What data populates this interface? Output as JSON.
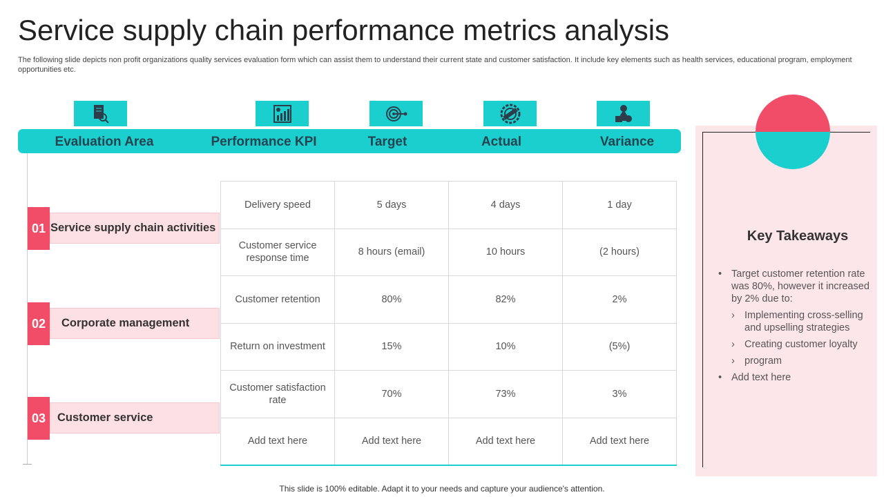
{
  "title": "Service supply chain performance metrics analysis",
  "subtitle": "The following slide depicts non profit organizations quality services evaluation form which can assist them to understand their current state and customer satisfaction. It include key elements such as health services, educational program, employment opportunities etc.",
  "colors": {
    "teal": "#1ccfcf",
    "red": "#f24d68",
    "pink": "#fde0e4"
  },
  "headers": [
    "Evaluation Area",
    "Performance KPI",
    "Target",
    "Actual",
    "Variance"
  ],
  "header_icons": [
    "document-search-icon",
    "chart-growth-icon",
    "target-icon",
    "actual-stamp-icon",
    "shapes-icon"
  ],
  "areas": [
    {
      "num": "01",
      "label": "Service supply chain activities"
    },
    {
      "num": "02",
      "label": "Corporate management"
    },
    {
      "num": "03",
      "label": "Customer service"
    }
  ],
  "rows": [
    [
      "Delivery speed",
      "5 days",
      "4 days",
      "1 day"
    ],
    [
      "Customer service response time",
      "8 hours (email)",
      "10 hours",
      "(2 hours)"
    ],
    [
      "Customer retention",
      "80%",
      "82%",
      "2%"
    ],
    [
      "Return on investment",
      "15%",
      "10%",
      "(5%)"
    ],
    [
      "Customer satisfaction rate",
      "70%",
      "73%",
      "3%"
    ],
    [
      "Add text here",
      "Add text here",
      "Add text here",
      "Add text here"
    ]
  ],
  "takeaways": {
    "title": "Key Takeaways",
    "items": [
      {
        "level": 1,
        "text": "Target customer retention rate was 80%, however it increased by 2% due to:"
      },
      {
        "level": 2,
        "text": "Implementing cross-selling and upselling strategies"
      },
      {
        "level": 2,
        "text": "Creating customer loyalty"
      },
      {
        "level": 2,
        "text": "program"
      },
      {
        "level": 1,
        "text": "Add text here"
      }
    ]
  },
  "footer": "This slide is 100% editable. Adapt it to your needs and capture your audience's attention."
}
